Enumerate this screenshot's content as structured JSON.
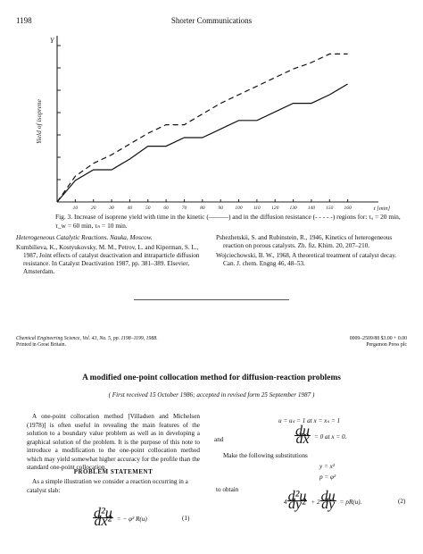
{
  "header": {
    "page_number": "1198",
    "running_title": "Shorter Communications"
  },
  "figure": {
    "y_axis_label": "Yield of isoprene",
    "y_axis_top_label": "Y",
    "x_axis_unit": "t [min]",
    "x_ticks": [
      "10",
      "20",
      "30",
      "40",
      "50",
      "60",
      "70",
      "80",
      "90",
      "100",
      "110",
      "120",
      "130",
      "140",
      "150",
      "160"
    ],
    "caption": "Fig. 3.  Increase of isoprene yield with time in the kinetic (———) and in the diffusion resistance (- - - - -) regions for: τₐ = 20 min, τ_w = 60 min, τₙ = 10 min."
  },
  "chart_data": {
    "type": "line",
    "xlabel": "t [min]",
    "ylabel": "Yield of isoprene",
    "x": [
      0,
      10,
      20,
      30,
      40,
      50,
      60,
      70,
      80,
      90,
      100,
      110,
      120,
      130,
      140,
      150,
      160
    ],
    "series": [
      {
        "style": "solid",
        "values": [
          0,
          1.0,
          1.5,
          1.5,
          2.0,
          2.6,
          2.6,
          3.0,
          3.0,
          3.4,
          3.8,
          3.8,
          4.2,
          4.6,
          4.6,
          5.0,
          5.5
        ]
      },
      {
        "style": "dashed",
        "values": [
          0,
          1.2,
          1.8,
          2.2,
          2.7,
          3.2,
          3.6,
          3.6,
          4.1,
          4.6,
          5.0,
          5.4,
          5.8,
          6.2,
          6.5,
          6.9,
          6.9
        ]
      }
    ],
    "xlim": [
      0,
      170
    ],
    "ylim": [
      0,
      7.5
    ],
    "y_ticks_count": 7,
    "grid": false
  },
  "references_left": [
    "Heterogeneous Catalytic Reactions. Nauka, Moscow.",
    "Kumbilieva, K., Kostyukovsky, M. M., Petrov, L. and Kiperman, S. L., 1987, Joint effects of catalyst deactivation and intraparticle diffusion resistance. In Catalyst Deactivation 1987, pp. 381–389. Elsevier, Amsterdam."
  ],
  "references_right": [
    "Pshezhetskii, S. and Rubinstein, R., 1946, Kinetics of heterogeneous reaction on porous catalysts. Zh. fiz. Khim. 20, 207–210.",
    "Wojciechowski, B. W., 1968, A theoretical treatment of catalyst decay. Can. J. chem. Engng 46, 48–53."
  ],
  "footer": {
    "journal_line1": "Chemical Engineering Science, Vol. 43, No. 5, pp. 1198–1199, 1988.",
    "journal_line2": "Printed in Great Britain.",
    "code_line1": "0009–2509/88  $3.00 + 0.00",
    "code_line2": "Pergamon Press plc"
  },
  "article": {
    "title": "A modified one-point collocation method for diffusion-reaction problems",
    "dates": "( First received 15 October 1986; accepted in revised form 25 September 1987 )",
    "intro": "A one-point collocation method [Villadsen and Michelsen (1978)] is often useful in revealing the main features of the solution to a boundary value problem as well as in developing a graphical solution of the problem. It is the purpose of this note to introduce a modification to the one-point collocation method which may yield somewhat higher accuracy for the profile than the standard one-point collocation.",
    "section_heading": "PROBLEM STATEMENT",
    "section_text": "As a simple illustration we consider a reaction occurring in a catalyst slab:",
    "eq1_rhs": "= − φ² R(u)",
    "eq1_num": "(1)",
    "bc1": "u = uₛ = 1   at   x = xₛ = 1",
    "and_word": "and",
    "bc2_tail": "= 0   at   x = 0.",
    "subs_text": "Make the following substitutions",
    "subs1": "y = x²",
    "subs2": "p = φ²",
    "to_obtain": "to obtain",
    "eq2_rhs": "= pR(u).",
    "eq2_num": "(2)"
  }
}
